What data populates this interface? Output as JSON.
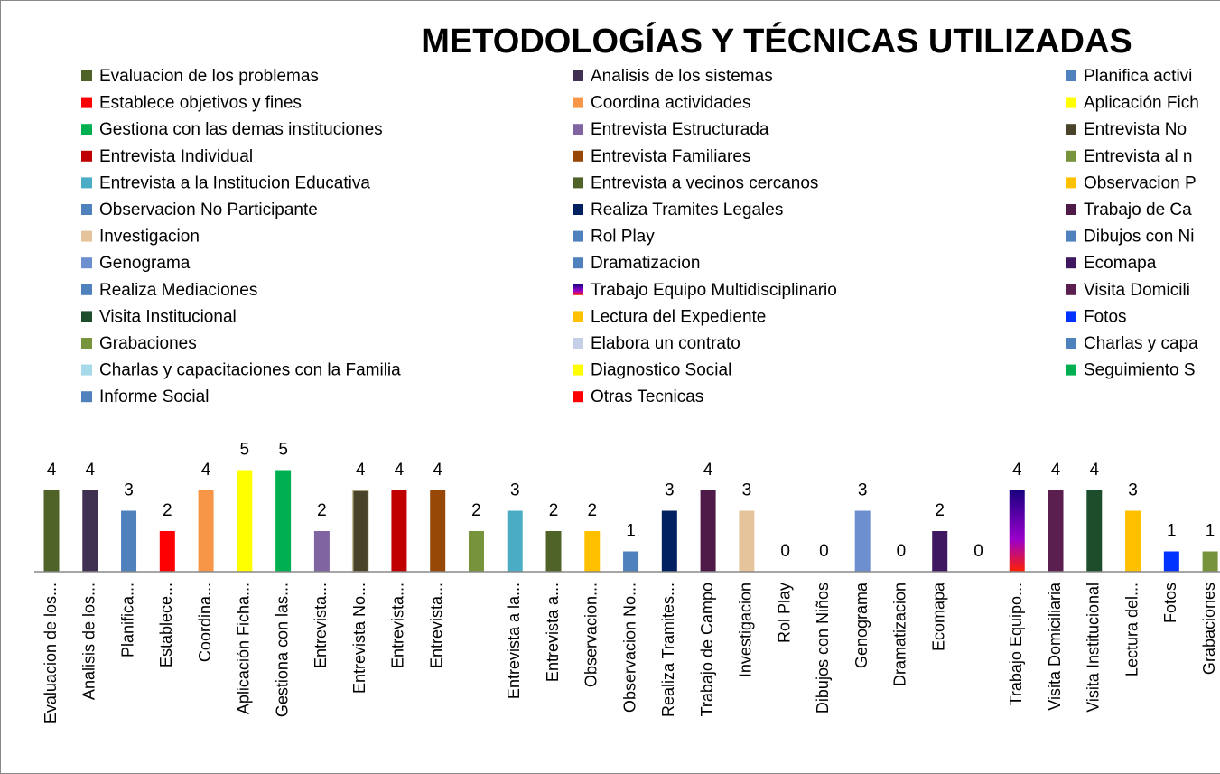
{
  "chart_data": {
    "type": "bar",
    "title": "METODOLOGÍAS Y TÉCNICAS UTILIZADAS",
    "categories": [
      "Evaluacion de los...",
      "Analisis de los...",
      "Planifica...",
      "Establece...",
      "Coordina...",
      "Aplicación Ficha...",
      "Gestiona con las...",
      "Entrevista...",
      "Entrevista No...",
      "Entrevista...",
      "Entrevista...",
      null,
      "Entrevista a la...",
      "Entrevista a...",
      "Observacion...",
      "Observacion No...",
      "Realiza Tramites...",
      "Trabajo de Campo",
      "Investigacion",
      "Rol Play",
      "Dibujos con Niños",
      "Genograma",
      "Dramatizacion",
      "Ecomapa",
      null,
      "Trabajo Equipo...",
      "Visita Domiciliaria",
      "Visita Institucional",
      "Lectura del...",
      "Fotos",
      "Grabaciones"
    ],
    "values": [
      4,
      4,
      3,
      2,
      4,
      5,
      5,
      2,
      4,
      4,
      4,
      2,
      3,
      2,
      2,
      1,
      3,
      4,
      3,
      0,
      0,
      3,
      0,
      2,
      0,
      4,
      4,
      4,
      3,
      1,
      1
    ],
    "colors": [
      "#4f6228",
      "#403152",
      "#4f81bd",
      "#ff0000",
      "#f79646",
      "#ffff00",
      "#00b050",
      "#8064a2",
      "#494429",
      "#c00000",
      "#974806",
      "#77933c",
      "#4bacc6",
      "#4f6228",
      "#ffc000",
      "#4f81bd",
      "#002060",
      "#4e1a47",
      "#e6c49b",
      "#4f81bd",
      "#4f81bd",
      "#6d8fcf",
      "#4f81bd",
      "#3f1660",
      "#4f81bd",
      "url(#multi)",
      "#5b1f4f",
      "#1e4d2b",
      "#ffc000",
      "#0033ff",
      "#77933c"
    ],
    "ylim": [
      0,
      6
    ],
    "legend": [
      {
        "name": "Evaluacion de los problemas",
        "color": "#4f6228"
      },
      {
        "name": "Analisis de los sistemas",
        "color": "#403152"
      },
      {
        "name": "Planifica activi",
        "color": "#4f81bd"
      },
      {
        "name": "Establece objetivos y fines",
        "color": "#ff0000"
      },
      {
        "name": "Coordina actividades",
        "color": "#f79646"
      },
      {
        "name": "Aplicación Fich",
        "color": "#ffff00"
      },
      {
        "name": "Gestiona con las demas instituciones",
        "color": "#00b050"
      },
      {
        "name": "Entrevista Estructurada",
        "color": "#8064a2"
      },
      {
        "name": "Entrevista No",
        "color": "#494429"
      },
      {
        "name": "Entrevista Individual",
        "color": "#c00000"
      },
      {
        "name": "Entrevista Familiares",
        "color": "#974806"
      },
      {
        "name": "Entrevista al n",
        "color": "#77933c"
      },
      {
        "name": "Entrevista a la Institucion Educativa",
        "color": "#4bacc6"
      },
      {
        "name": "Entrevista a vecinos cercanos",
        "color": "#4f6228"
      },
      {
        "name": "Observacion P",
        "color": "#ffc000"
      },
      {
        "name": "Observacion No Participante",
        "color": "#4f81bd"
      },
      {
        "name": "Realiza Tramites Legales",
        "color": "#002060"
      },
      {
        "name": "Trabajo de Ca",
        "color": "#4e1a47"
      },
      {
        "name": "Investigacion",
        "color": "#e6c49b"
      },
      {
        "name": "Rol Play",
        "color": "#4f81bd"
      },
      {
        "name": "Dibujos con Ni",
        "color": "#4f81bd"
      },
      {
        "name": "Genograma",
        "color": "#6d8fcf"
      },
      {
        "name": "Dramatizacion",
        "color": "#4f81bd"
      },
      {
        "name": "Ecomapa",
        "color": "#3f1660"
      },
      {
        "name": "Realiza Mediaciones",
        "color": "#4f81bd"
      },
      {
        "name": "Trabajo Equipo Multidisciplinario",
        "color": "url(#multi)"
      },
      {
        "name": "Visita Domicili",
        "color": "#5b1f4f"
      },
      {
        "name": "Visita Institucional",
        "color": "#1e4d2b"
      },
      {
        "name": "Lectura del Expediente",
        "color": "#ffc000"
      },
      {
        "name": "Fotos",
        "color": "#0033ff"
      },
      {
        "name": "Grabaciones",
        "color": "#77933c"
      },
      {
        "name": "Elabora un contrato",
        "color": "#c5d0e8"
      },
      {
        "name": "Charlas y capa",
        "color": "#4f81bd"
      },
      {
        "name": "Charlas y capacitaciones con la Familia",
        "color": "#a6d9ea"
      },
      {
        "name": "Diagnostico Social",
        "color": "#ffff00"
      },
      {
        "name": "Seguimiento S",
        "color": "#00b050"
      },
      {
        "name": "Informe Social",
        "color": "#4f81bd"
      },
      {
        "name": "Otras Tecnicas",
        "color": "#ff0000"
      }
    ]
  }
}
